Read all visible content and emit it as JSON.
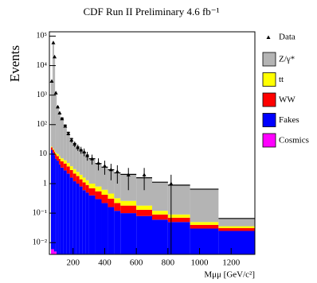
{
  "chart_data": {
    "type": "stacked_histogram",
    "title": "CDF Run II Preliminary 4.6 fb⁻¹",
    "ylabel": "Events",
    "xlabel": "Mμμ [GeV/c²]",
    "log_y": true,
    "xlim": [
      50,
      1350
    ],
    "ylim": [
      0.004,
      140000
    ],
    "xticks": [
      200,
      400,
      600,
      800,
      1000,
      1200
    ],
    "yticks": [
      {
        "value": 0.01,
        "label": "10⁻²"
      },
      {
        "value": 0.1,
        "label": "10⁻¹"
      },
      1,
      10,
      {
        "value": 100,
        "label": "10²"
      },
      {
        "value": 1000,
        "label": "10³"
      },
      {
        "value": 10000,
        "label": "10⁴"
      },
      {
        "value": 100000,
        "label": "10⁵"
      }
    ],
    "bins": [
      60,
      70,
      80,
      86,
      96,
      110,
      120,
      140,
      160,
      180,
      200,
      220,
      240,
      260,
      280,
      300,
      340,
      380,
      420,
      460,
      500,
      600,
      700,
      800,
      940,
      1120,
      1350
    ],
    "data": {
      "name": "Data",
      "color": "#000000",
      "x": [
        65,
        75,
        83,
        91,
        103,
        115,
        130,
        150,
        170,
        190,
        210,
        230,
        250,
        270,
        290,
        320,
        360,
        400,
        440,
        480,
        550,
        650,
        820
      ],
      "values": [
        3000,
        60000,
        20000,
        1200,
        400,
        250,
        160,
        90,
        50,
        30,
        22,
        17,
        14,
        12,
        9,
        7,
        5,
        4,
        3,
        2.6,
        2,
        2,
        1
      ],
      "errors": [
        55,
        245,
        141,
        35,
        20,
        16,
        13,
        9.5,
        7,
        5.5,
        4.7,
        4.1,
        3.7,
        3.5,
        3,
        2.6,
        2.2,
        2,
        1.7,
        1.6,
        1.4,
        1.4,
        1
      ]
    },
    "series": [
      {
        "name": "Z/γ*",
        "color": "#b4b4b4",
        "values": [
          3000,
          60000,
          20000,
          1200,
          400,
          250,
          160,
          90,
          50,
          30,
          20,
          15,
          12,
          10,
          8,
          6,
          4,
          3,
          2.5,
          2,
          1.8,
          1.4,
          1.0,
          0.8,
          0.6,
          0.03
        ]
      },
      {
        "name": "tt",
        "color": "#ffff00",
        "values": [
          1,
          1.2,
          1.4,
          1.5,
          1.6,
          1.6,
          1.5,
          1.4,
          1.2,
          1.0,
          0.9,
          0.7,
          0.6,
          0.5,
          0.4,
          0.3,
          0.25,
          0.2,
          0.15,
          0.1,
          0.08,
          0.05,
          0.03,
          0.02,
          0.01,
          0.005
        ]
      },
      {
        "name": "WW",
        "color": "#ff0000",
        "values": [
          3,
          3,
          3,
          2.8,
          2.6,
          2.4,
          2.2,
          2,
          1.6,
          1.3,
          1.0,
          0.8,
          0.6,
          0.5,
          0.4,
          0.3,
          0.25,
          0.2,
          0.15,
          0.1,
          0.08,
          0.05,
          0.03,
          0.02,
          0.01,
          0.006
        ]
      },
      {
        "name": "Fakes",
        "color": "#0000ff",
        "values": [
          14,
          11,
          9,
          7,
          6,
          4.5,
          3.5,
          2.8,
          2.2,
          1.6,
          1.2,
          1.0,
          0.8,
          0.6,
          0.5,
          0.4,
          0.3,
          0.22,
          0.16,
          0.12,
          0.1,
          0.08,
          0.06,
          0.05,
          0.03,
          0.025
        ]
      },
      {
        "name": "Cosmics",
        "color": "#ff00ff",
        "values": [
          0.006,
          0.006,
          0.005,
          0.005,
          0.004,
          0.004,
          0,
          0,
          0,
          0,
          0,
          0,
          0,
          0,
          0,
          0,
          0,
          0,
          0,
          0,
          0,
          0,
          0,
          0,
          0,
          0
        ]
      }
    ]
  }
}
